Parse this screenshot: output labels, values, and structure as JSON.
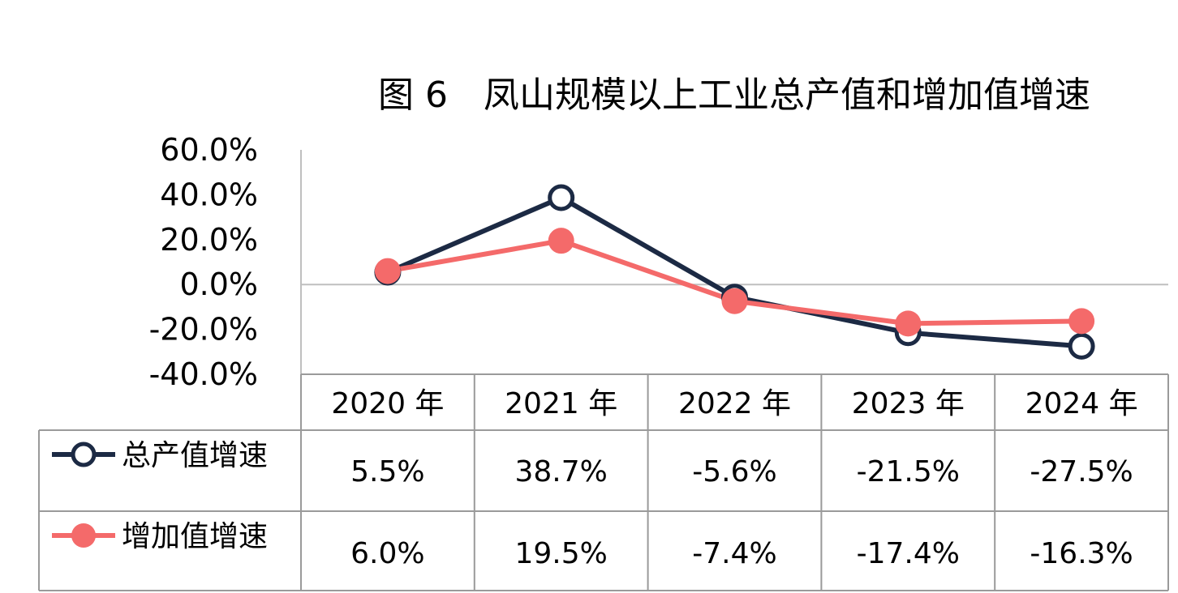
{
  "chart_data": {
    "type": "line",
    "title": "图 6　凤山规模以上工业总产值和增加值增速",
    "categories": [
      "2020 年",
      "2021 年",
      "2022 年",
      "2023 年",
      "2024 年"
    ],
    "yticks": [
      "60.0%",
      "40.0%",
      "20.0%",
      "0.0%",
      "-20.0%",
      "-40.0%"
    ],
    "ylim": [
      -40,
      60
    ],
    "series": [
      {
        "name": "总产值增速",
        "values": [
          5.5,
          38.7,
          -5.6,
          -21.5,
          -27.5
        ],
        "labels": [
          "5.5%",
          "38.7%",
          "-5.6%",
          "-21.5%",
          "-27.5%"
        ],
        "color": "#1c2a44",
        "marker": "hollow-circle"
      },
      {
        "name": "增加值增速",
        "values": [
          6.0,
          19.5,
          -7.4,
          -17.4,
          -16.3
        ],
        "labels": [
          "6.0%",
          "19.5%",
          "-7.4%",
          "-17.4%",
          "-16.3%"
        ],
        "color": "#f46a6a",
        "marker": "filled-circle"
      }
    ],
    "grid": false,
    "legend": "data-table"
  }
}
